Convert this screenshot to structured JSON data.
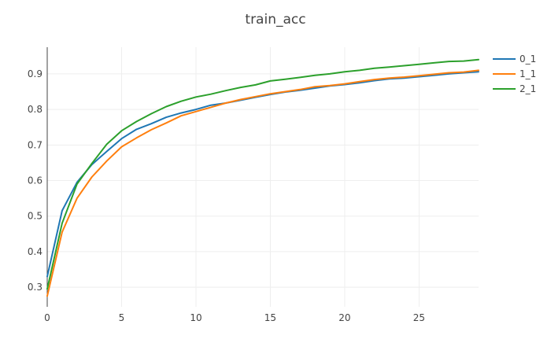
{
  "chart_data": {
    "type": "line",
    "title": "train_acc",
    "xlabel": "",
    "ylabel": "",
    "xlim": [
      0,
      29
    ],
    "ylim": [
      0.245,
      0.975
    ],
    "x_ticks": [
      0,
      5,
      10,
      15,
      20,
      25
    ],
    "y_ticks": [
      0.3,
      0.4,
      0.5,
      0.6,
      0.7,
      0.8,
      0.9
    ],
    "grid": true,
    "legend_position": "top-right",
    "x": [
      0,
      1,
      2,
      3,
      4,
      5,
      6,
      7,
      8,
      9,
      10,
      11,
      12,
      13,
      14,
      15,
      16,
      17,
      18,
      19,
      20,
      21,
      22,
      23,
      24,
      25,
      26,
      27,
      28,
      29
    ],
    "series": [
      {
        "name": "0_1",
        "color": "#1f77b4",
        "values": [
          0.33,
          0.515,
          0.595,
          0.645,
          0.682,
          0.718,
          0.744,
          0.76,
          0.778,
          0.79,
          0.8,
          0.812,
          0.818,
          0.826,
          0.834,
          0.842,
          0.849,
          0.854,
          0.86,
          0.866,
          0.87,
          0.875,
          0.881,
          0.886,
          0.888,
          0.892,
          0.896,
          0.9,
          0.903,
          0.906
        ]
      },
      {
        "name": "1_1",
        "color": "#ff7f0e",
        "values": [
          0.275,
          0.455,
          0.55,
          0.61,
          0.655,
          0.695,
          0.72,
          0.743,
          0.762,
          0.782,
          0.794,
          0.806,
          0.818,
          0.828,
          0.836,
          0.844,
          0.85,
          0.856,
          0.864,
          0.867,
          0.872,
          0.878,
          0.884,
          0.888,
          0.891,
          0.895,
          0.899,
          0.903,
          0.905,
          0.91
        ]
      },
      {
        "name": "2_1",
        "color": "#2ca02c",
        "values": [
          0.295,
          0.48,
          0.59,
          0.648,
          0.702,
          0.74,
          0.766,
          0.788,
          0.808,
          0.823,
          0.835,
          0.843,
          0.853,
          0.862,
          0.869,
          0.88,
          0.885,
          0.89,
          0.896,
          0.9,
          0.906,
          0.91,
          0.916,
          0.919,
          0.923,
          0.927,
          0.931,
          0.935,
          0.936,
          0.94
        ]
      }
    ]
  }
}
